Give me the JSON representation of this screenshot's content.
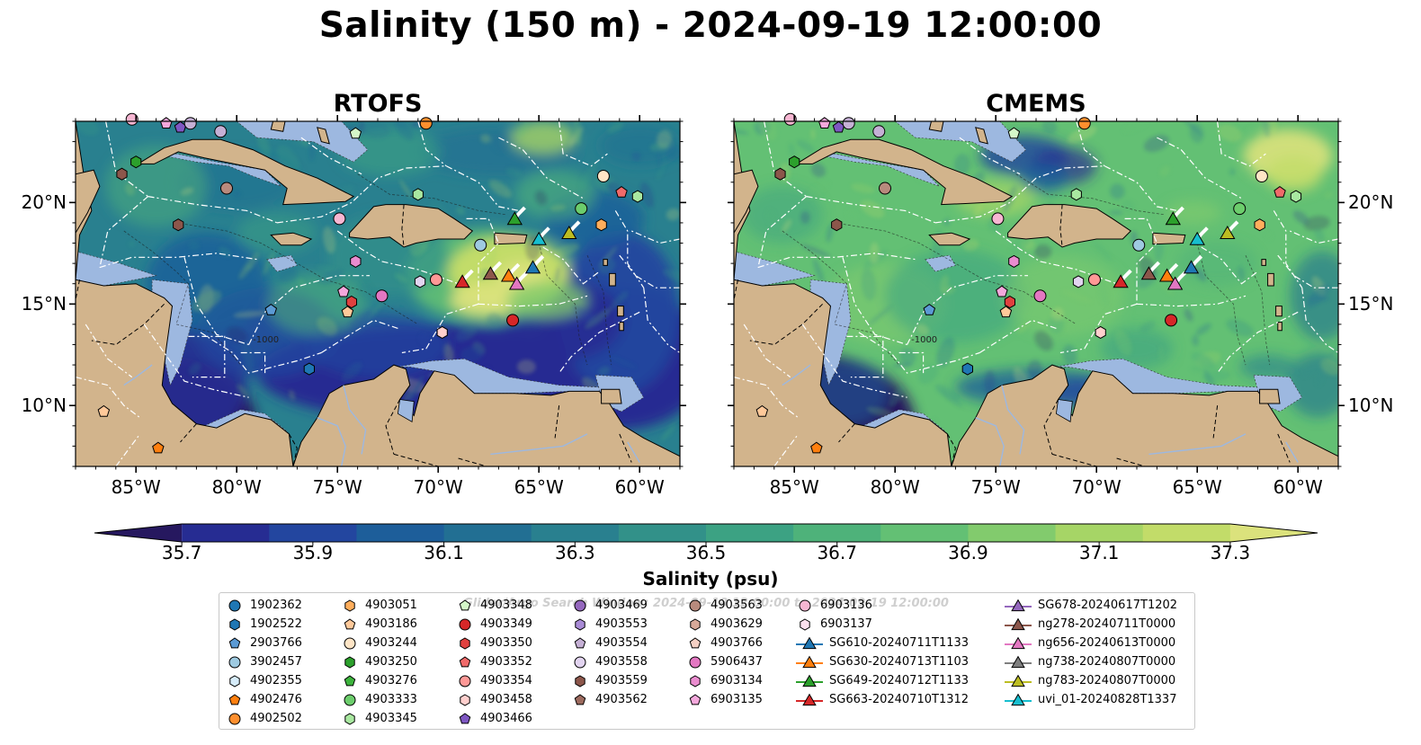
{
  "title": "Salinity (150 m) - 2024-09-19 12:00:00",
  "panels": [
    {
      "title": "RTOFS",
      "palette": "rtofs"
    },
    {
      "title": "CMEMS",
      "palette": "cmems"
    }
  ],
  "map": {
    "lon_ticks": [
      "85°W",
      "80°W",
      "75°W",
      "70°W",
      "65°W",
      "60°W"
    ],
    "lat_ticks": [
      "20°N",
      "15°N",
      "10°N"
    ],
    "lon_range": [
      -88,
      -58
    ],
    "lat_range": [
      7,
      24
    ],
    "contour_label": "-1000",
    "colors": {
      "land": "#d2b48c",
      "shelf": "#9db8e0",
      "eez_lines": "#ffffff",
      "borders": "#000000"
    }
  },
  "colorbar": {
    "label": "Salinity (psu)",
    "ticks": [
      "35.7",
      "35.9",
      "36.1",
      "36.3",
      "36.5",
      "36.7",
      "36.9",
      "37.1",
      "37.3"
    ],
    "colors": [
      "#26185f",
      "#262c92",
      "#23469f",
      "#1d5e9a",
      "#226f93",
      "#29808f",
      "#329189",
      "#3ca283",
      "#4eb27a",
      "#63c074",
      "#82cb6d",
      "#a6d566",
      "#c2dc69",
      "#dbe27c"
    ],
    "extend": "both"
  },
  "legend": {
    "watermark": "Glider/Argo Search Window: 2024-09-18 12:00:00 to 2024-09-19 12:00:00",
    "columns": [
      [
        {
          "label": "1902362",
          "marker": "circle",
          "color": "#1f77b4"
        },
        {
          "label": "1902522",
          "marker": "hexagon",
          "color": "#1f77b4"
        },
        {
          "label": "2903766",
          "marker": "pentagon",
          "color": "#5b9ad4"
        },
        {
          "label": "3902457",
          "marker": "circle",
          "color": "#9ecae1"
        },
        {
          "label": "4902355",
          "marker": "hexagon",
          "color": "#d6ecfa"
        },
        {
          "label": "4902476",
          "marker": "pentagon",
          "color": "#ff7f0e"
        },
        {
          "label": "4902502",
          "marker": "circle",
          "color": "#ff8f2e"
        }
      ],
      [
        {
          "label": "4903051",
          "marker": "hexagon",
          "color": "#ffae5c"
        },
        {
          "label": "4903186",
          "marker": "pentagon",
          "color": "#ffc99a"
        },
        {
          "label": "4903244",
          "marker": "circle",
          "color": "#ffe5c6"
        },
        {
          "label": "4903250",
          "marker": "hexagon",
          "color": "#2ca02c"
        },
        {
          "label": "4903276",
          "marker": "pentagon",
          "color": "#3cb33c"
        },
        {
          "label": "4903333",
          "marker": "circle",
          "color": "#6ccd6c"
        },
        {
          "label": "4903345",
          "marker": "hexagon",
          "color": "#a9e8a0"
        }
      ],
      [
        {
          "label": "4903348",
          "marker": "pentagon",
          "color": "#d4f7c8"
        },
        {
          "label": "4903349",
          "marker": "circle",
          "color": "#d62728"
        },
        {
          "label": "4903350",
          "marker": "hexagon",
          "color": "#e0413f"
        },
        {
          "label": "4903352",
          "marker": "pentagon",
          "color": "#f06a6a"
        },
        {
          "label": "4903354",
          "marker": "circle",
          "color": "#ff9896"
        },
        {
          "label": "4903458",
          "marker": "hexagon",
          "color": "#ffcfcd"
        },
        {
          "label": "4903466",
          "marker": "pentagon",
          "color": "#7e57c2"
        }
      ],
      [
        {
          "label": "4903469",
          "marker": "circle",
          "color": "#9467bd"
        },
        {
          "label": "4903553",
          "marker": "hexagon",
          "color": "#a98bd6"
        },
        {
          "label": "4903554",
          "marker": "pentagon",
          "color": "#c5b0d5"
        },
        {
          "label": "4903558",
          "marker": "circle",
          "color": "#e2d4f0"
        },
        {
          "label": "4903559",
          "marker": "hexagon",
          "color": "#8c564b"
        },
        {
          "label": "4903562",
          "marker": "pentagon",
          "color": "#9c6a5e"
        }
      ],
      [
        {
          "label": "4903563",
          "marker": "circle",
          "color": "#b88a7d"
        },
        {
          "label": "4903629",
          "marker": "hexagon",
          "color": "#d8a999"
        },
        {
          "label": "4903766",
          "marker": "pentagon",
          "color": "#f5d0c4"
        },
        {
          "label": "5906437",
          "marker": "circle",
          "color": "#e377c2"
        },
        {
          "label": "6903134",
          "marker": "hexagon",
          "color": "#ea8ccf"
        },
        {
          "label": "6903135",
          "marker": "pentagon",
          "color": "#f4a8dc"
        }
      ],
      [
        {
          "label": "6903136",
          "marker": "circle",
          "color": "#f7b6d2"
        },
        {
          "label": "6903137",
          "marker": "hexagon",
          "color": "#fbe0ee"
        },
        {
          "label": "SG610-20240711T1133",
          "marker": "triangle-line",
          "color": "#1f77b4"
        },
        {
          "label": "SG630-20240713T1103",
          "marker": "triangle-line",
          "color": "#ff7f0e"
        },
        {
          "label": "SG649-20240712T1133",
          "marker": "triangle-line",
          "color": "#2ca02c"
        },
        {
          "label": "SG663-20240710T1312",
          "marker": "triangle-line",
          "color": "#d62728"
        }
      ],
      [
        {
          "label": "SG678-20240617T1202",
          "marker": "triangle-line",
          "color": "#9467bd"
        },
        {
          "label": "ng278-20240711T0000",
          "marker": "triangle-line",
          "color": "#8c564b"
        },
        {
          "label": "ng656-20240613T0000",
          "marker": "triangle-line",
          "color": "#e377c2"
        },
        {
          "label": "ng738-20240807T0000",
          "marker": "triangle-line",
          "color": "#7f7f7f"
        },
        {
          "label": "ng783-20240807T0000",
          "marker": "triangle-line",
          "color": "#bcbd22"
        },
        {
          "label": "uvi_01-20240828T1337",
          "marker": "triangle-line",
          "color": "#17becf"
        }
      ]
    ]
  },
  "observations": {
    "argo": [
      {
        "lon": -85.2,
        "lat": 24.1,
        "marker": "circle",
        "color": "#f7b6d2"
      },
      {
        "lon": -83.5,
        "lat": 23.9,
        "marker": "pentagon",
        "color": "#f4a8dc"
      },
      {
        "lon": -82.8,
        "lat": 23.7,
        "marker": "pentagon",
        "color": "#7e57c2"
      },
      {
        "lon": -82.3,
        "lat": 23.9,
        "marker": "circle",
        "color": "#c5b0d5"
      },
      {
        "lon": -80.8,
        "lat": 23.5,
        "marker": "circle",
        "color": "#c5b0d5"
      },
      {
        "lon": -85.0,
        "lat": 22.0,
        "marker": "hexagon",
        "color": "#2ca02c"
      },
      {
        "lon": -85.7,
        "lat": 21.4,
        "marker": "hexagon",
        "color": "#8c564b"
      },
      {
        "lon": -82.9,
        "lat": 18.9,
        "marker": "hexagon",
        "color": "#8c564b"
      },
      {
        "lon": -80.5,
        "lat": 20.7,
        "marker": "circle",
        "color": "#b88a7d"
      },
      {
        "lon": -74.9,
        "lat": 19.2,
        "marker": "circle",
        "color": "#f7b6d2"
      },
      {
        "lon": -74.1,
        "lat": 23.4,
        "marker": "pentagon",
        "color": "#d4f7c8"
      },
      {
        "lon": -70.6,
        "lat": 23.9,
        "marker": "circle",
        "color": "#ff8f2e"
      },
      {
        "lon": -71.0,
        "lat": 20.4,
        "marker": "hexagon",
        "color": "#a9e8a0"
      },
      {
        "lon": -61.8,
        "lat": 21.3,
        "marker": "circle",
        "color": "#ffe5c6"
      },
      {
        "lon": -60.9,
        "lat": 20.5,
        "marker": "pentagon",
        "color": "#f06a6a"
      },
      {
        "lon": -60.1,
        "lat": 20.3,
        "marker": "hexagon",
        "color": "#a9e8a0"
      },
      {
        "lon": -62.9,
        "lat": 19.7,
        "marker": "circle",
        "color": "#6ccd6c"
      },
      {
        "lon": -61.9,
        "lat": 18.9,
        "marker": "hexagon",
        "color": "#ffae5c"
      },
      {
        "lon": -67.9,
        "lat": 17.9,
        "marker": "circle",
        "color": "#9ecae1"
      },
      {
        "lon": -74.1,
        "lat": 17.1,
        "marker": "hexagon",
        "color": "#ea8ccf"
      },
      {
        "lon": -74.7,
        "lat": 15.6,
        "marker": "pentagon",
        "color": "#f4a8dc"
      },
      {
        "lon": -74.3,
        "lat": 15.1,
        "marker": "hexagon",
        "color": "#e0413f"
      },
      {
        "lon": -74.5,
        "lat": 14.6,
        "marker": "pentagon",
        "color": "#ffc99a"
      },
      {
        "lon": -72.8,
        "lat": 15.4,
        "marker": "circle",
        "color": "#e377c2"
      },
      {
        "lon": -70.9,
        "lat": 16.1,
        "marker": "hexagon",
        "color": "#e2d4f0"
      },
      {
        "lon": -70.1,
        "lat": 16.2,
        "marker": "circle",
        "color": "#ff9896"
      },
      {
        "lon": -69.8,
        "lat": 13.6,
        "marker": "hexagon",
        "color": "#ffcfcd"
      },
      {
        "lon": -66.3,
        "lat": 14.2,
        "marker": "circle",
        "color": "#d62728"
      },
      {
        "lon": -78.3,
        "lat": 14.7,
        "marker": "pentagon",
        "color": "#5b9ad4"
      },
      {
        "lon": -76.4,
        "lat": 11.8,
        "marker": "hexagon",
        "color": "#1f77b4"
      },
      {
        "lon": -86.6,
        "lat": 9.7,
        "marker": "pentagon",
        "color": "#ffc99a"
      },
      {
        "lon": -83.9,
        "lat": 7.9,
        "marker": "pentagon",
        "color": "#ff7f0e"
      }
    ],
    "gliders": [
      {
        "lon": -68.8,
        "lat": 16.1,
        "color": "#d62728"
      },
      {
        "lon": -67.4,
        "lat": 16.5,
        "color": "#8c564b"
      },
      {
        "lon": -66.5,
        "lat": 16.4,
        "color": "#ff7f0e"
      },
      {
        "lon": -66.1,
        "lat": 16.0,
        "color": "#e377c2"
      },
      {
        "lon": -65.3,
        "lat": 16.8,
        "color": "#1f77b4"
      },
      {
        "lon": -65.0,
        "lat": 18.2,
        "color": "#17becf"
      },
      {
        "lon": -63.5,
        "lat": 18.5,
        "color": "#bcbd22"
      },
      {
        "lon": -66.2,
        "lat": 19.2,
        "color": "#2ca02c"
      }
    ]
  }
}
